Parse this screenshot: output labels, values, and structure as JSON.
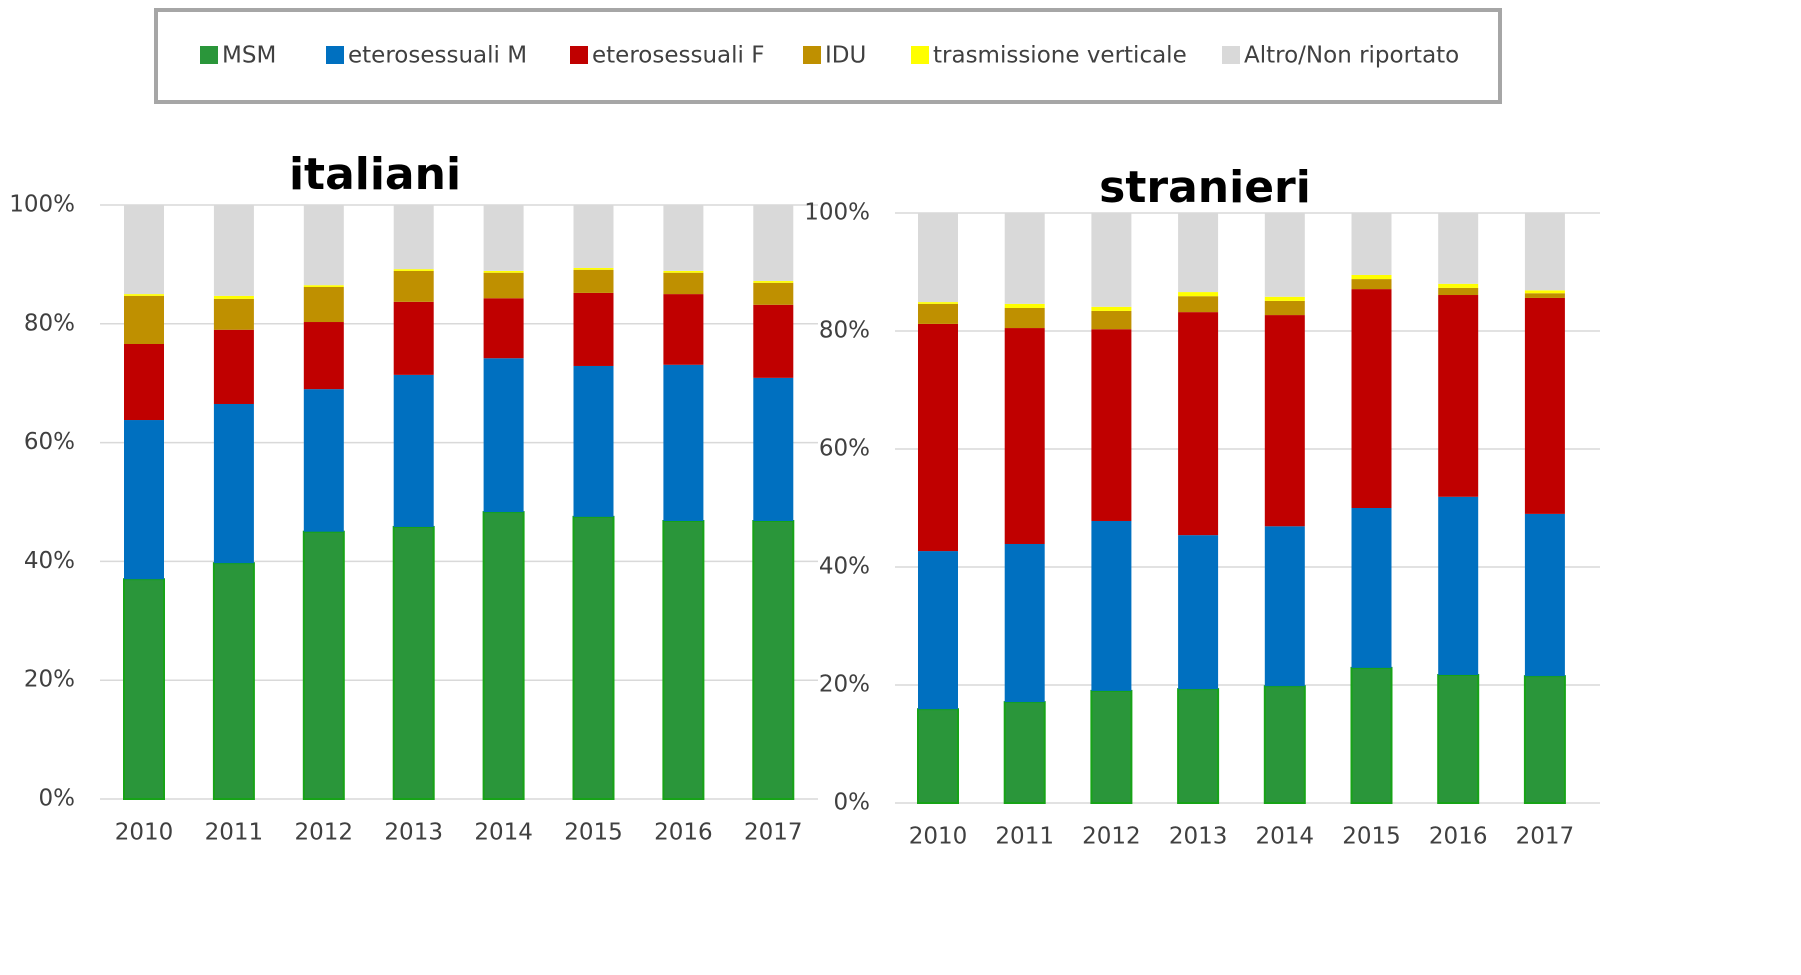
{
  "chart_data": [
    {
      "type": "bar",
      "stacked": true,
      "title": "italiani",
      "categories": [
        "2010",
        "2011",
        "2012",
        "2013",
        "2014",
        "2015",
        "2016",
        "2017"
      ],
      "series": [
        {
          "name": "MSM",
          "color": "#2a963a",
          "values": [
            37.0,
            39.7,
            45.0,
            45.8,
            48.3,
            47.5,
            46.8,
            46.8
          ]
        },
        {
          "name": "eterosessuali M",
          "color": "#0070c0",
          "values": [
            26.8,
            26.8,
            24.0,
            25.6,
            25.9,
            25.4,
            26.3,
            24.1
          ]
        },
        {
          "name": "eterosessuali F",
          "color": "#c00000",
          "values": [
            12.8,
            12.5,
            11.3,
            12.3,
            10.1,
            12.3,
            11.9,
            12.3
          ]
        },
        {
          "name": "IDU",
          "color": "#bf9000",
          "values": [
            8.1,
            5.2,
            5.9,
            5.2,
            4.3,
            3.9,
            3.6,
            3.7
          ]
        },
        {
          "name": "trasmissione verticale",
          "color": "#ffff00",
          "values": [
            0.3,
            0.5,
            0.3,
            0.3,
            0.3,
            0.3,
            0.3,
            0.3
          ]
        },
        {
          "name": "Altro/Non riportato",
          "color": "#d9d9d9",
          "values": [
            15.0,
            15.3,
            13.5,
            10.8,
            11.1,
            10.6,
            11.1,
            12.8
          ]
        }
      ],
      "ylim": [
        0,
        100
      ],
      "yticks": [
        {
          "value": 0,
          "label": "0%"
        },
        {
          "value": 20,
          "label": "20%"
        },
        {
          "value": 40,
          "label": "40%"
        },
        {
          "value": 60,
          "label": "60%"
        },
        {
          "value": 80,
          "label": "80%"
        },
        {
          "value": 100,
          "label": "100%"
        }
      ],
      "grid": true
    },
    {
      "type": "bar",
      "stacked": true,
      "title": "stranieri",
      "categories": [
        "2010",
        "2011",
        "2012",
        "2013",
        "2014",
        "2015",
        "2016",
        "2017"
      ],
      "series": [
        {
          "name": "MSM",
          "color": "#2a963a",
          "values": [
            15.9,
            17.1,
            19.0,
            19.3,
            19.8,
            22.9,
            21.7,
            21.5
          ]
        },
        {
          "name": "eterosessuali M",
          "color": "#0070c0",
          "values": [
            26.8,
            26.8,
            28.8,
            26.1,
            27.1,
            27.1,
            30.2,
            27.5
          ]
        },
        {
          "name": "eterosessuali F",
          "color": "#c00000",
          "values": [
            38.5,
            36.6,
            32.5,
            37.8,
            35.8,
            37.1,
            34.2,
            36.6
          ]
        },
        {
          "name": "IDU",
          "color": "#bf9000",
          "values": [
            3.4,
            3.4,
            3.1,
            2.7,
            2.4,
            1.7,
            1.2,
            0.8
          ]
        },
        {
          "name": "trasmissione verticale",
          "color": "#ffff00",
          "values": [
            0.3,
            0.7,
            0.7,
            0.7,
            0.7,
            0.7,
            0.7,
            0.5
          ]
        },
        {
          "name": "Altro/Non riportato",
          "color": "#d9d9d9",
          "values": [
            15.1,
            15.4,
            15.9,
            13.4,
            14.2,
            10.5,
            12.0,
            13.1
          ]
        }
      ],
      "ylim": [
        0,
        100
      ],
      "yticks": [
        {
          "value": 0,
          "label": "0%"
        },
        {
          "value": 20,
          "label": "20%"
        },
        {
          "value": 40,
          "label": "40%"
        },
        {
          "value": 60,
          "label": "60%"
        },
        {
          "value": 80,
          "label": "80%"
        },
        {
          "value": 100,
          "label": "100%"
        }
      ],
      "grid": true
    }
  ]
}
